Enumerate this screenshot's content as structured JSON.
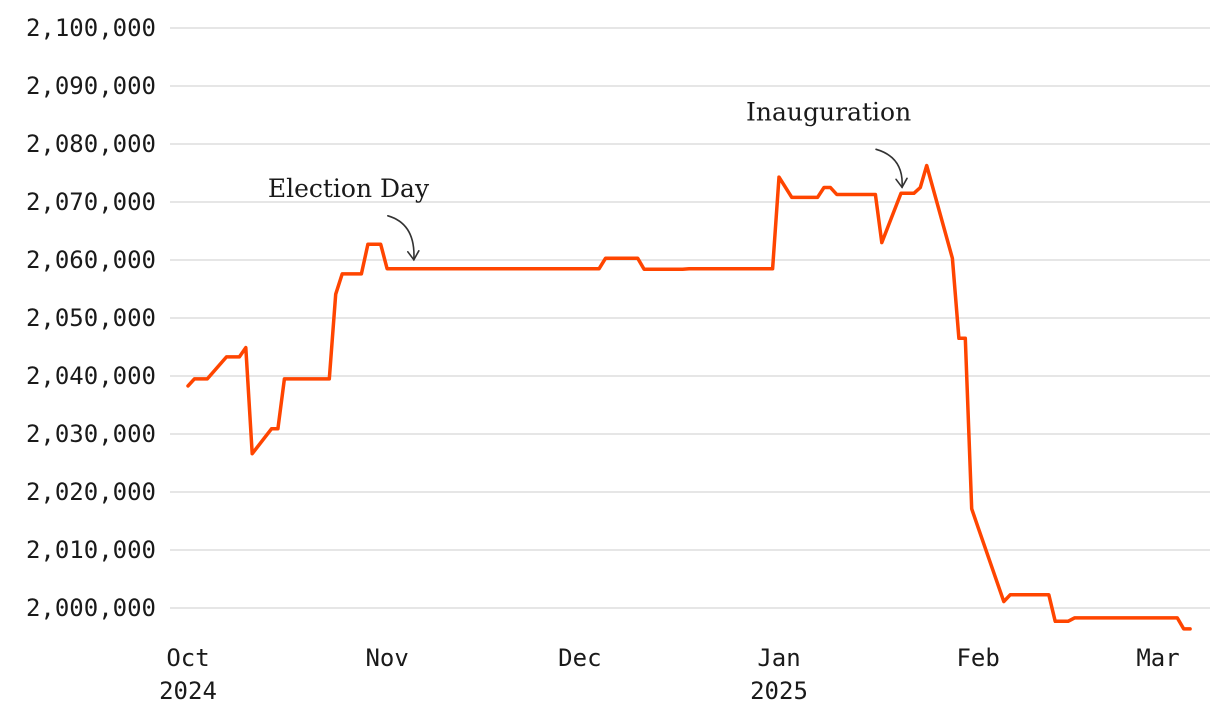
{
  "chart_data": {
    "type": "line",
    "title": "",
    "xlabel": "",
    "ylabel": "",
    "ylim": [
      1995000,
      2100000
    ],
    "grid": true,
    "line_color": "#ff4500",
    "y_ticks": [
      2000000,
      2010000,
      2020000,
      2030000,
      2040000,
      2050000,
      2060000,
      2070000,
      2080000,
      2090000,
      2100000
    ],
    "y_tick_labels": [
      "2,000,000",
      "2,010,000",
      "2,020,000",
      "2,030,000",
      "2,040,000",
      "2,050,000",
      "2,060,000",
      "2,070,000",
      "2,080,000",
      "2,090,000",
      "2,100,000"
    ],
    "x_ticks": [
      {
        "date": "2024-10-01",
        "label": "Oct",
        "year": "2024"
      },
      {
        "date": "2024-11-01",
        "label": "Nov",
        "year": ""
      },
      {
        "date": "2024-12-01",
        "label": "Dec",
        "year": ""
      },
      {
        "date": "2025-01-01",
        "label": "Jan",
        "year": "2025"
      },
      {
        "date": "2025-02-01",
        "label": "Feb",
        "year": ""
      },
      {
        "date": "2025-03-01",
        "label": "Mar",
        "year": ""
      }
    ],
    "annotations": [
      {
        "label": "Election Day",
        "date": "2024-11-05",
        "value": 2059000
      },
      {
        "label": "Inauguration",
        "date": "2025-01-20",
        "value": 2071500
      }
    ],
    "series": [
      {
        "points": [
          [
            "2024-10-01",
            2038300
          ],
          [
            "2024-10-02",
            2039500
          ],
          [
            "2024-10-04",
            2039500
          ],
          [
            "2024-10-07",
            2043300
          ],
          [
            "2024-10-09",
            2043300
          ],
          [
            "2024-10-10",
            2044900
          ],
          [
            "2024-10-11",
            2026600
          ],
          [
            "2024-10-14",
            2030900
          ],
          [
            "2024-10-15",
            2030900
          ],
          [
            "2024-10-16",
            2039500
          ],
          [
            "2024-10-23",
            2039500
          ],
          [
            "2024-10-24",
            2054100
          ],
          [
            "2024-10-25",
            2057600
          ],
          [
            "2024-10-28",
            2057600
          ],
          [
            "2024-10-29",
            2062700
          ],
          [
            "2024-10-31",
            2062700
          ],
          [
            "2024-11-01",
            2058500
          ],
          [
            "2024-12-04",
            2058500
          ],
          [
            "2024-12-05",
            2060300
          ],
          [
            "2024-12-10",
            2060300
          ],
          [
            "2024-12-11",
            2058400
          ],
          [
            "2024-12-17",
            2058400
          ],
          [
            "2024-12-18",
            2058500
          ],
          [
            "2024-12-31",
            2058500
          ],
          [
            "2025-01-01",
            2074300
          ],
          [
            "2025-01-03",
            2070800
          ],
          [
            "2025-01-07",
            2070800
          ],
          [
            "2025-01-08",
            2072500
          ],
          [
            "2025-01-09",
            2072500
          ],
          [
            "2025-01-10",
            2071300
          ],
          [
            "2025-01-16",
            2071300
          ],
          [
            "2025-01-17",
            2063000
          ],
          [
            "2025-01-20",
            2071500
          ],
          [
            "2025-01-22",
            2071500
          ],
          [
            "2025-01-23",
            2072500
          ],
          [
            "2025-01-24",
            2076300
          ],
          [
            "2025-01-28",
            2060300
          ],
          [
            "2025-01-29",
            2046500
          ],
          [
            "2025-01-30",
            2046500
          ],
          [
            "2025-01-31",
            2017100
          ],
          [
            "2025-02-01",
            2013900
          ],
          [
            "2025-02-05",
            2001100
          ],
          [
            "2025-02-06",
            2002300
          ],
          [
            "2025-02-12",
            2002300
          ],
          [
            "2025-02-13",
            1997700
          ],
          [
            "2025-02-15",
            1997700
          ],
          [
            "2025-02-16",
            1998300
          ],
          [
            "2025-03-04",
            1998300
          ],
          [
            "2025-03-05",
            1996400
          ],
          [
            "2025-03-06",
            1996400
          ]
        ]
      }
    ]
  }
}
